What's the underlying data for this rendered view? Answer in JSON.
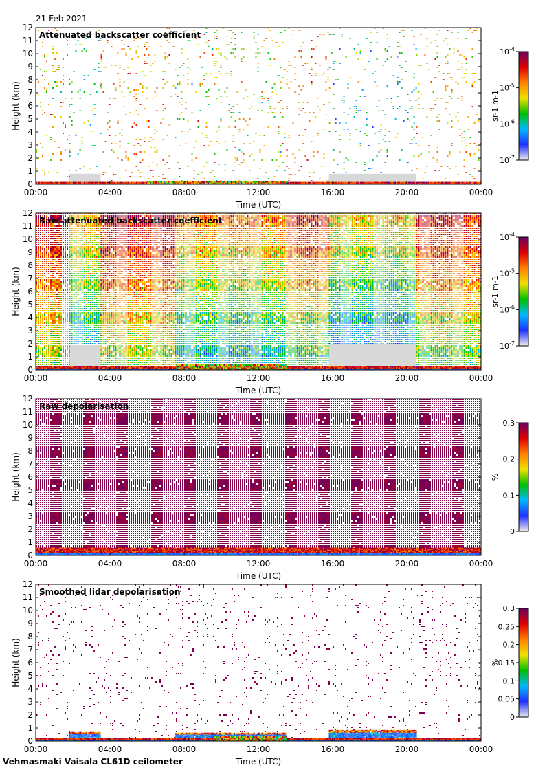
{
  "header": {
    "date": "21 Feb 2021"
  },
  "footer": {
    "label": "Vehmasmaki Vaisala CL61D ceilometer"
  },
  "colors": {
    "colormap": [
      "#ededed",
      "#2030ff",
      "#00b8ff",
      "#00c000",
      "#f0e000",
      "#ff8000",
      "#e00000",
      "#6a0060"
    ],
    "missing": "#d8d8d8"
  },
  "chart_data": [
    {
      "type": "heatmap",
      "title": "Attenuated backscatter coefficient",
      "xlabel": "Time (UTC)",
      "ylabel": "Height (km)",
      "x_tick_labels": [
        "00:00",
        "04:00",
        "08:00",
        "12:00",
        "16:00",
        "20:00",
        "00:00"
      ],
      "x_range_hours": [
        0,
        24
      ],
      "y_ticks": [
        0,
        1,
        2,
        3,
        4,
        5,
        6,
        7,
        8,
        9,
        10,
        11,
        12
      ],
      "ylim": [
        0,
        12
      ],
      "colorbar": {
        "label": "sr-1 m-1",
        "scale": "log",
        "range": [
          1e-07,
          0.0001
        ],
        "ticks": [
          {
            "base": "10",
            "exp": "-7",
            "v": 0
          },
          {
            "base": "10",
            "exp": "-6",
            "v": 0.333
          },
          {
            "base": "10",
            "exp": "-5",
            "v": 0.667
          },
          {
            "base": "10",
            "exp": "-4",
            "v": 1
          }
        ]
      },
      "density": 0.07,
      "segments": [
        {
          "t0": 0,
          "t1": 1.8,
          "mid": 0.62,
          "spread": 0.22
        },
        {
          "t0": 1.8,
          "t1": 3.5,
          "mid": 0.38,
          "spread": 0.22,
          "low_fill_km": 0.8
        },
        {
          "t0": 3.5,
          "t1": 7.5,
          "mid": 0.68,
          "spread": 0.2
        },
        {
          "t0": 7.5,
          "t1": 13.5,
          "mid": 0.55,
          "spread": 0.25
        },
        {
          "t0": 13.5,
          "t1": 15.8,
          "mid": 0.72,
          "spread": 0.15
        },
        {
          "t0": 15.8,
          "t1": 20.5,
          "mid": 0.38,
          "spread": 0.25,
          "low_fill_km": 0.8
        },
        {
          "t0": 20.5,
          "t1": 24,
          "mid": 0.62,
          "spread": 0.2
        }
      ],
      "ground_layer": {
        "height_km": 0.15,
        "strong": [
          [
            6.0,
            13.5
          ]
        ]
      }
    },
    {
      "type": "heatmap",
      "title": "Raw attenuated backscatter coefficient",
      "xlabel": "Time (UTC)",
      "ylabel": "Height (km)",
      "x_tick_labels": [
        "00:00",
        "04:00",
        "08:00",
        "12:00",
        "16:00",
        "20:00",
        "00:00"
      ],
      "x_range_hours": [
        0,
        24
      ],
      "y_ticks": [
        0,
        1,
        2,
        3,
        4,
        5,
        6,
        7,
        8,
        9,
        10,
        11,
        12
      ],
      "ylim": [
        0,
        12
      ],
      "colorbar": {
        "label": "sr-1 m-1",
        "scale": "log",
        "range": [
          1e-07,
          0.0001
        ],
        "ticks": [
          {
            "base": "10",
            "exp": "-7",
            "v": 0
          },
          {
            "base": "10",
            "exp": "-6",
            "v": 0.333
          },
          {
            "base": "10",
            "exp": "-5",
            "v": 0.667
          },
          {
            "base": "10",
            "exp": "-4",
            "v": 1
          }
        ]
      },
      "density": 0.9,
      "segments": [
        {
          "t0": 0,
          "t1": 1.8,
          "mid": 0.7,
          "spread": 0.18,
          "grad": true,
          "low_fill_km": 0
        },
        {
          "t0": 1.8,
          "t1": 3.5,
          "mid": 0.45,
          "spread": 0.18,
          "grad": true,
          "low_fill_km": 1.9
        },
        {
          "t0": 3.5,
          "t1": 7.5,
          "mid": 0.7,
          "spread": 0.18,
          "grad": true
        },
        {
          "t0": 7.5,
          "t1": 13.5,
          "mid": 0.5,
          "spread": 0.18,
          "grad": true
        },
        {
          "t0": 13.5,
          "t1": 15.8,
          "mid": 0.62,
          "spread": 0.18,
          "grad": true
        },
        {
          "t0": 15.8,
          "t1": 20.5,
          "mid": 0.4,
          "spread": 0.18,
          "grad": true,
          "low_fill_km": 2.0
        },
        {
          "t0": 20.5,
          "t1": 24,
          "mid": 0.65,
          "spread": 0.18,
          "grad": true
        }
      ],
      "ground_layer": {
        "height_km": 0.25,
        "strong": [
          [
            7.5,
            13.5
          ]
        ]
      }
    },
    {
      "type": "heatmap",
      "title": "Raw depolarisation",
      "xlabel": "Time (UTC)",
      "ylabel": "Height (km)",
      "x_tick_labels": [
        "00:00",
        "04:00",
        "08:00",
        "12:00",
        "16:00",
        "20:00",
        "00:00"
      ],
      "x_range_hours": [
        0,
        24
      ],
      "y_ticks": [
        0,
        1,
        2,
        3,
        4,
        5,
        6,
        7,
        8,
        9,
        10,
        11,
        12
      ],
      "ylim": [
        0,
        12
      ],
      "colorbar": {
        "label": "%",
        "scale": "linear",
        "range": [
          0,
          0.3
        ],
        "ticks": [
          {
            "base": "0",
            "exp": "",
            "v": 0
          },
          {
            "base": "0.1",
            "exp": "",
            "v": 0.333
          },
          {
            "base": "0.2",
            "exp": "",
            "v": 0.667
          },
          {
            "base": "0.3",
            "exp": "",
            "v": 1
          }
        ]
      },
      "density": 0.93,
      "segments": [
        {
          "t0": 0,
          "t1": 24,
          "mid": 0.97,
          "spread": 0.04
        }
      ],
      "ground_layer": {
        "height_km": 0.6,
        "strong": []
      }
    },
    {
      "type": "heatmap",
      "title": "Smoothed lidar depolarisation",
      "xlabel": "Time (UTC)",
      "ylabel": "Height (km)",
      "x_tick_labels": [
        "00:00",
        "04:00",
        "08:00",
        "12:00",
        "16:00",
        "20:00",
        "00:00"
      ],
      "x_range_hours": [
        0,
        24
      ],
      "y_ticks": [
        0,
        1,
        2,
        3,
        4,
        5,
        6,
        7,
        8,
        9,
        10,
        11,
        12
      ],
      "ylim": [
        0,
        12
      ],
      "colorbar": {
        "label": "%",
        "scale": "linear",
        "range": [
          0,
          0.3
        ],
        "ticks": [
          {
            "base": "0",
            "exp": "",
            "v": 0
          },
          {
            "base": "0.05",
            "exp": "",
            "v": 0.167
          },
          {
            "base": "0.1",
            "exp": "",
            "v": 0.333
          },
          {
            "base": "0.15",
            "exp": "",
            "v": 0.5
          },
          {
            "base": "0.2",
            "exp": "",
            "v": 0.667
          },
          {
            "base": "0.25",
            "exp": "",
            "v": 0.833
          },
          {
            "base": "0.3",
            "exp": "",
            "v": 1
          }
        ]
      },
      "density": 0.05,
      "segments": [
        {
          "t0": 0,
          "t1": 24,
          "mid": 0.97,
          "spread": 0.04
        }
      ],
      "cloud_bands": [
        [
          1.8,
          3.5,
          0.75
        ],
        [
          7.5,
          13.5,
          0.7
        ],
        [
          15.8,
          20.5,
          0.9
        ]
      ],
      "ground_layer": {
        "height_km": 0.2,
        "strong": [
          [
            9.5,
            13.5
          ]
        ]
      }
    }
  ]
}
